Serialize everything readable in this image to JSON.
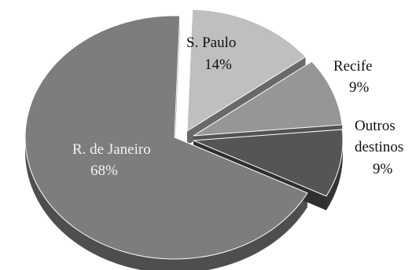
{
  "chart_data": {
    "type": "pie",
    "style": "3d-exploded",
    "title": "",
    "slices": [
      {
        "label": "R. de Janeiro",
        "value": 68,
        "value_label": "68%",
        "color": "#7d7d7d"
      },
      {
        "label": "S. Paulo",
        "value": 14,
        "value_label": "14%",
        "color": "#bfbfbf"
      },
      {
        "label": "Recife",
        "value": 9,
        "value_label": "9%",
        "color": "#969696"
      },
      {
        "label": "Outros destinos",
        "value": 9,
        "value_label": "9%",
        "color": "#555555"
      }
    ],
    "legend": "none"
  }
}
